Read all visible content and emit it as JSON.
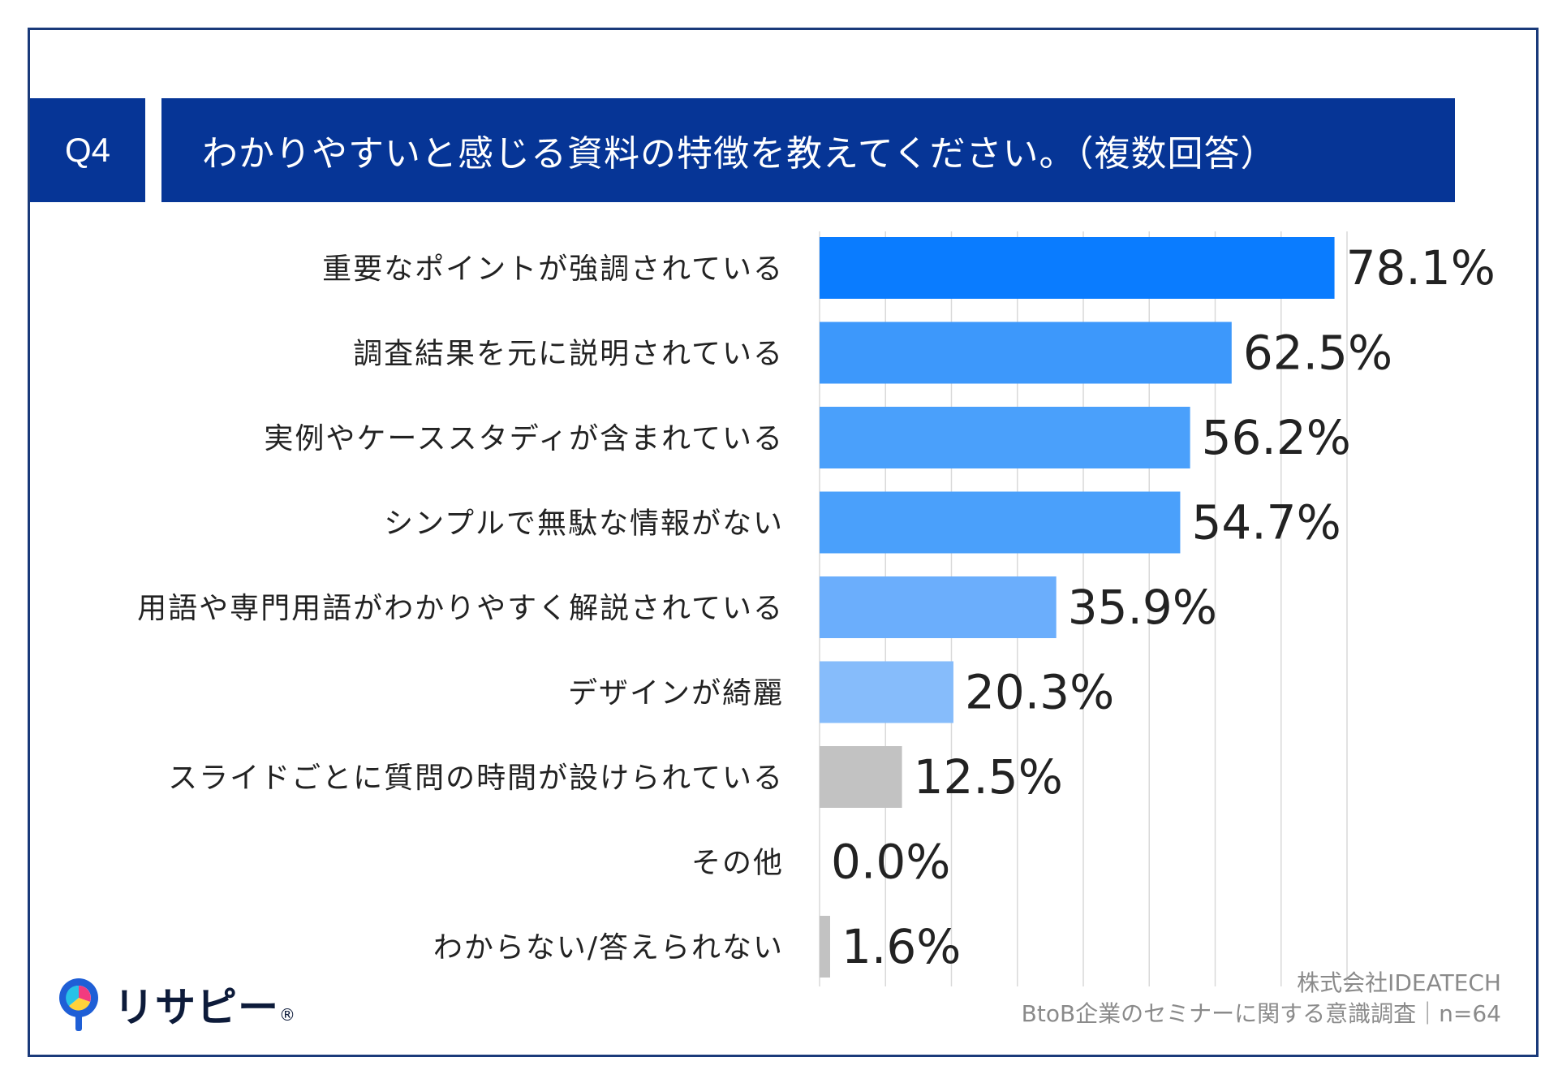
{
  "header": {
    "question_number": "Q4",
    "question_text": "わかりやすいと感じる資料の特徴を教えてください。（複数回答）"
  },
  "chart_data": {
    "type": "bar",
    "orientation": "horizontal",
    "categories": [
      "重要なポイントが強調されている",
      "調査結果を元に説明されている",
      "実例やケーススタディが含まれている",
      "シンプルで無駄な情報がない",
      "用語や専門用語がわかりやすく解説されている",
      "デザインが綺麗",
      "スライドごとに質問の時間が設けられている",
      "その他",
      "わからない/答えられない"
    ],
    "values": [
      78.1,
      62.5,
      56.2,
      54.7,
      35.9,
      20.3,
      12.5,
      0.0,
      1.6
    ],
    "value_labels": [
      "78.1%",
      "62.5%",
      "56.2%",
      "54.7%",
      "35.9%",
      "20.3%",
      "12.5%",
      "0.0%",
      "1.6%"
    ],
    "bar_colors": [
      "#0a7cff",
      "#3d98fb",
      "#4aa0fb",
      "#4aa0fb",
      "#6baefc",
      "#86bcfb",
      "#c2c2c2",
      "#c2c2c2",
      "#c2c2c2"
    ],
    "xlim": [
      0,
      80
    ],
    "grid_step": 10,
    "grid": true,
    "title": "",
    "xlabel": "",
    "ylabel": ""
  },
  "logo": {
    "text": "リサピー",
    "mark": "®"
  },
  "credit": {
    "company": "株式会社IDEATECH",
    "survey": "BtoB企業のセミナーに関する意識調査｜n=64"
  },
  "colors": {
    "header_bg": "#063596",
    "frame": "#1a3a7a",
    "grid": "#d9d9d9"
  }
}
